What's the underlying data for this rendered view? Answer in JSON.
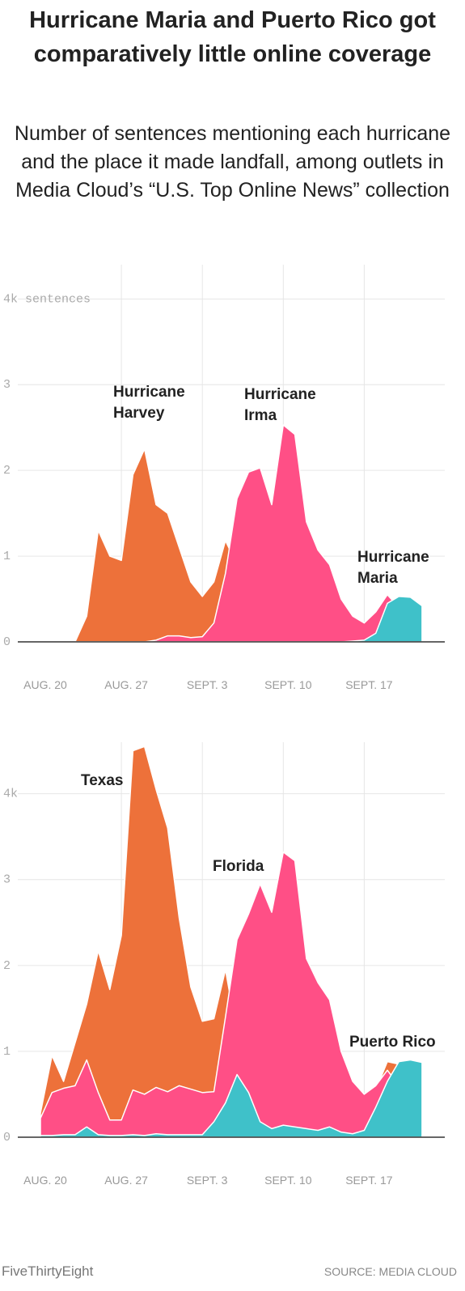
{
  "title": "Hurricane Maria and Puerto Rico got comparatively little online coverage",
  "subtitle": "Number of sentences mentioning each hurricane and the place it made landfall, among outlets in Media Cloud’s “U.S. Top Online News” collection",
  "chart_data": [
    {
      "type": "area",
      "categories": [
        "AUG. 20",
        null,
        null,
        null,
        null,
        null,
        null,
        "AUG. 27",
        null,
        null,
        null,
        null,
        null,
        null,
        "SEPT. 3",
        null,
        null,
        null,
        null,
        null,
        null,
        "SEPT. 10",
        null,
        null,
        null,
        null,
        null,
        null,
        "SEPT. 17",
        null,
        null,
        null,
        null,
        null
      ],
      "series": [
        {
          "name": "Hurricane Harvey",
          "color": "#ed713a",
          "values": [
            0,
            0,
            0,
            0,
            0.3,
            1.3,
            1.0,
            0.95,
            1.95,
            2.25,
            1.6,
            1.5,
            1.1,
            0.7,
            0.53,
            0.7,
            1.18,
            0.9,
            0.6,
            0.5,
            0.4,
            0.35,
            0.3,
            0.25,
            0.2,
            0.18,
            0.15,
            0.12,
            0.1,
            0.1,
            0.1,
            0.08,
            0.07,
            0.06
          ]
        },
        {
          "name": "Hurricane Irma",
          "color": "#ff4f86",
          "values": [
            0,
            0,
            0,
            0,
            0,
            0,
            0,
            0,
            0,
            0,
            0.02,
            0.07,
            0.07,
            0.05,
            0.06,
            0.22,
            0.8,
            1.67,
            1.98,
            2.03,
            1.6,
            2.53,
            2.42,
            1.4,
            1.07,
            0.9,
            0.5,
            0.3,
            0.22,
            0.35,
            0.55,
            0.4,
            0.3,
            0.25
          ]
        },
        {
          "name": "Hurricane Maria",
          "color": "#3fc1c9",
          "values": [
            0,
            0,
            0,
            0,
            0,
            0,
            0,
            0,
            0,
            0,
            0,
            0,
            0,
            0,
            0,
            0,
            0,
            0,
            0,
            0,
            0,
            0,
            0,
            0,
            0,
            0,
            0,
            0.01,
            0.02,
            0.1,
            0.45,
            0.53,
            0.52,
            0.42
          ]
        }
      ],
      "annotations": [
        [
          "Hurricane",
          "Harvey"
        ],
        [
          "Hurricane",
          "Irma"
        ],
        [
          "Hurricane",
          "Maria"
        ]
      ],
      "ylim": [
        0,
        4.4
      ],
      "yticks": [
        0,
        1,
        2,
        3,
        {
          "value": 4,
          "label": "4k sentences"
        }
      ],
      "grid": true
    },
    {
      "type": "area",
      "categories": [
        "AUG. 20",
        null,
        null,
        null,
        null,
        null,
        null,
        "AUG. 27",
        null,
        null,
        null,
        null,
        null,
        null,
        "SEPT. 3",
        null,
        null,
        null,
        null,
        null,
        null,
        "SEPT. 10",
        null,
        null,
        null,
        null,
        null,
        null,
        "SEPT. 17",
        null,
        null,
        null,
        null,
        null
      ],
      "series": [
        {
          "name": "Texas",
          "color": "#ed713a",
          "values": [
            0.28,
            0.95,
            0.65,
            1.1,
            1.55,
            2.17,
            1.72,
            2.35,
            4.5,
            4.55,
            4.05,
            3.6,
            2.55,
            1.75,
            1.35,
            1.38,
            1.95,
            1.2,
            1.0,
            0.9,
            0.8,
            0.7,
            0.7,
            0.6,
            0.6,
            0.55,
            0.5,
            0.45,
            0.45,
            0.55,
            0.88,
            0.85,
            0.7,
            0.6
          ]
        },
        {
          "name": "Florida",
          "color": "#ff4f86",
          "values": [
            0.22,
            0.52,
            0.57,
            0.6,
            0.9,
            0.52,
            0.2,
            0.2,
            0.55,
            0.5,
            0.58,
            0.53,
            0.6,
            0.56,
            0.52,
            0.53,
            1.4,
            2.3,
            2.6,
            2.95,
            2.62,
            3.32,
            3.22,
            2.08,
            1.8,
            1.6,
            1.0,
            0.65,
            0.5,
            0.6,
            0.78,
            0.6,
            0.5,
            0.4
          ]
        },
        {
          "name": "Puerto Rico",
          "color": "#3fc1c9",
          "values": [
            0.02,
            0.02,
            0.03,
            0.03,
            0.12,
            0.03,
            0.02,
            0.02,
            0.03,
            0.02,
            0.04,
            0.03,
            0.03,
            0.03,
            0.03,
            0.18,
            0.4,
            0.73,
            0.52,
            0.18,
            0.1,
            0.14,
            0.12,
            0.1,
            0.08,
            0.12,
            0.06,
            0.04,
            0.08,
            0.35,
            0.65,
            0.88,
            0.9,
            0.87
          ]
        }
      ],
      "annotations": [
        [
          "Texas"
        ],
        [
          "Florida"
        ],
        [
          "Puerto Rico"
        ]
      ],
      "ylim": [
        0,
        4.6
      ],
      "yticks": [
        0,
        1,
        2,
        3,
        {
          "value": 4,
          "label": "4k"
        }
      ],
      "grid": true
    }
  ],
  "footer": {
    "brand": "FiveThirtyEight",
    "source": "SOURCE: MEDIA CLOUD"
  }
}
